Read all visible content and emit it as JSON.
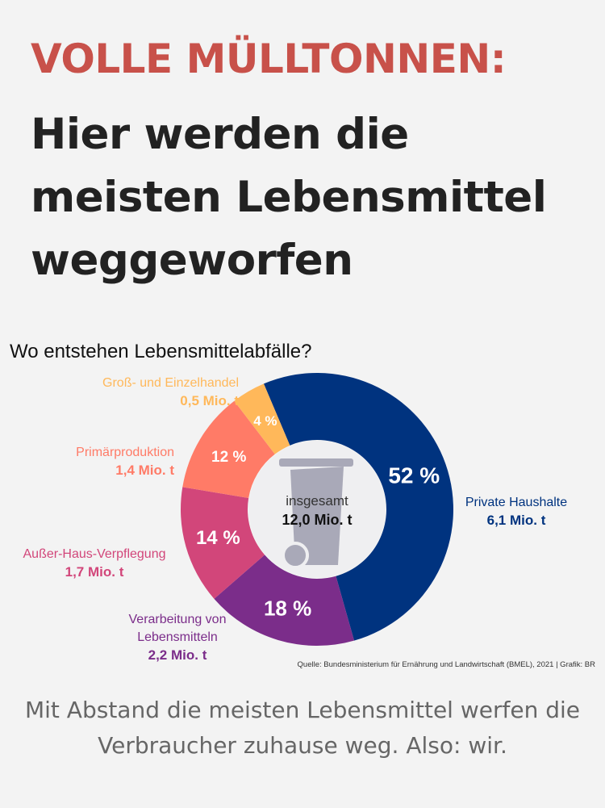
{
  "header": {
    "kicker": "VOLLE MÜLLTONNEN:",
    "headline": "Hier werden die meisten Lebensmittel weggeworfen"
  },
  "chart_data": {
    "type": "pie",
    "title": "Wo entstehen Lebensmittelabfälle?",
    "center_label": "insgesamt",
    "center_value": "12,0 Mio. t",
    "slices": [
      {
        "name": "Private Haushalte",
        "percent": 52,
        "percent_label": "52 %",
        "amount": "6,1 Mio. t",
        "color": "#00337f"
      },
      {
        "name": "Verarbeitung von Lebensmitteln",
        "percent": 18,
        "percent_label": "18 %",
        "amount": "2,2 Mio. t",
        "color": "#7b2d8a"
      },
      {
        "name": "Außer-Haus-Verpflegung",
        "percent": 14,
        "percent_label": "14 %",
        "amount": "1,7 Mio. t",
        "color": "#d2467a"
      },
      {
        "name": "Primärproduktion",
        "percent": 12,
        "percent_label": "12 %",
        "amount": "1,4 Mio. t",
        "color": "#ff7b67"
      },
      {
        "name": "Groß- und Einzelhandel",
        "percent": 4,
        "percent_label": "4 %",
        "amount": "0,5 Mio. t",
        "color": "#ffb85a"
      }
    ],
    "source": "Quelle: Bundesministerium für Ernährung und Landwirtschaft (BMEL), 2021 | Grafik: BR"
  },
  "caption": "Mit Abstand die meisten Lebensmittel werfen die Verbraucher zuhause weg. Also: wir."
}
